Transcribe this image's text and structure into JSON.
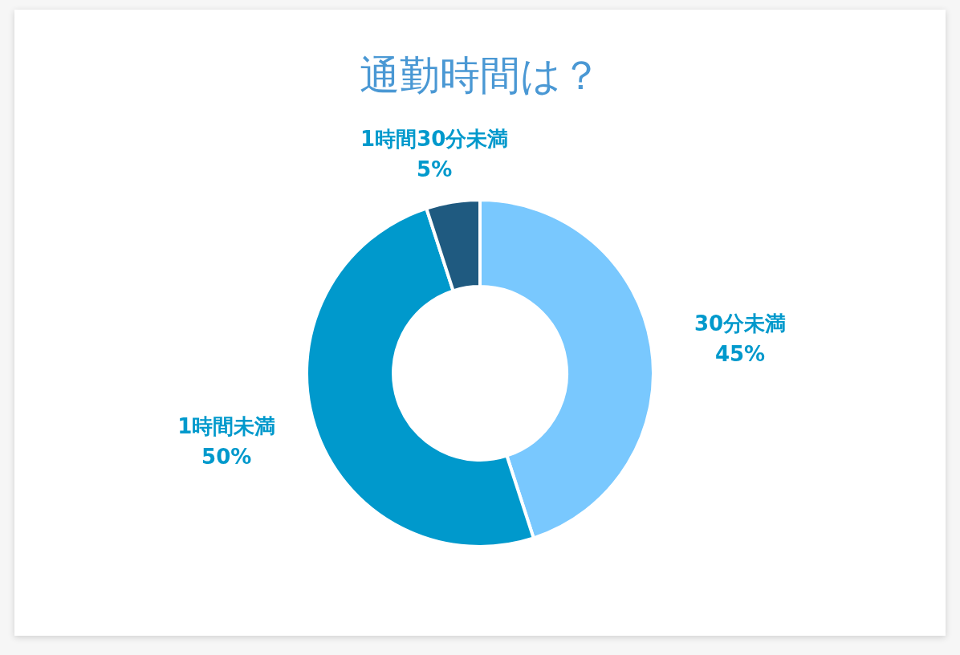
{
  "chart_data": {
    "type": "donut",
    "title": "通勤時間は？",
    "categories": [
      "30分未満",
      "1時間未満",
      "1時間30分未満"
    ],
    "values": [
      45,
      50,
      5
    ],
    "value_labels": [
      "45%",
      "50%",
      "5%"
    ],
    "colors": [
      "#79c8fe",
      "#0099cc",
      "#1f5a80"
    ]
  }
}
